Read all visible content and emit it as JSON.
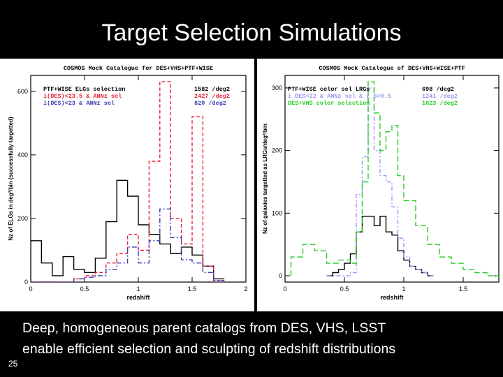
{
  "slide": {
    "title": "Target Selection Simulations",
    "caption_line1": "Deep, homogeneous parent catalogs from DES, VHS, LSST",
    "caption_line2": "enable efficient selection and sculpting of redshift distributions",
    "slide_number": "25"
  },
  "colors": {
    "black": "#000000",
    "red": "#e8203a",
    "blue": "#3a3ab8",
    "green": "#22cc22",
    "lightblue": "#9999ee"
  },
  "chart_data": [
    {
      "type": "line",
      "title": "COSMOS Mock Catalogue for DES+VHS+PTF+WISE",
      "xlabel": "redshift",
      "ylabel": "Nz of ELGs in deg²/bin (successfully targetted)",
      "xlim": [
        0,
        2
      ],
      "ylim": [
        0,
        650
      ],
      "xticks": [
        0,
        0.5,
        1,
        1.5,
        2
      ],
      "xtick_labels": [
        "0",
        "0.5",
        "1",
        "1.5",
        "2"
      ],
      "yticks": [
        0,
        200,
        400,
        600
      ],
      "ytick_labels": [
        "0",
        "200",
        "400",
        "600"
      ],
      "legend_position": "top",
      "series": [
        {
          "name": "PTF+WISE ELGs selection",
          "density": "1582 /deg2",
          "color": "#000000",
          "dash": "",
          "x": [
            0,
            0.1,
            0.2,
            0.3,
            0.4,
            0.5,
            0.6,
            0.7,
            0.8,
            0.9,
            1.0,
            1.1,
            1.2,
            1.3,
            1.4,
            1.5,
            1.6,
            1.7
          ],
          "values": [
            130,
            60,
            20,
            80,
            40,
            30,
            75,
            190,
            320,
            270,
            180,
            150,
            120,
            90,
            110,
            85,
            50,
            10
          ]
        },
        {
          "name": "i(DES)<23.5 & ANNz sel",
          "density": "2427 /deg2",
          "color": "#e8203a",
          "dash": "5 3",
          "x": [
            0,
            0.1,
            0.2,
            0.3,
            0.4,
            0.5,
            0.6,
            0.7,
            0.8,
            0.9,
            1.0,
            1.1,
            1.2,
            1.3,
            1.4,
            1.5,
            1.6,
            1.7
          ],
          "values": [
            0,
            0,
            0,
            0,
            10,
            20,
            30,
            60,
            90,
            150,
            100,
            380,
            630,
            200,
            120,
            520,
            50,
            5
          ]
        },
        {
          "name": "i(DES)<23 & ANNz sel",
          "density": "820 /deg2",
          "color": "#3a3ab8",
          "dash": "7 3 2 3",
          "x": [
            0,
            0.1,
            0.2,
            0.3,
            0.4,
            0.5,
            0.6,
            0.7,
            0.8,
            0.9,
            1.0,
            1.1,
            1.2,
            1.3,
            1.4,
            1.5,
            1.6,
            1.7
          ],
          "values": [
            0,
            0,
            0,
            0,
            10,
            15,
            20,
            40,
            60,
            110,
            60,
            130,
            230,
            140,
            70,
            60,
            30,
            5
          ]
        }
      ]
    },
    {
      "type": "line",
      "title": "COSMOS Mock Catalogue of DES+VHS+WISE+PTF",
      "xlabel": "redshift",
      "ylabel": "Nz of galaxies targetted as LRGs/deg²/bin",
      "xlim": [
        0,
        1.8
      ],
      "ylim": [
        -10,
        320
      ],
      "xticks": [
        0,
        0.5,
        1,
        1.5
      ],
      "xtick_labels": [
        "0",
        "0.5",
        "1",
        "1.5"
      ],
      "yticks": [
        0,
        100,
        200,
        300
      ],
      "ytick_labels": [
        "0",
        "100",
        "200",
        "300"
      ],
      "legend_position": "top",
      "series": [
        {
          "name": "PTF+WISE color sel LRGs",
          "density": "698 /deg2",
          "color": "#000000",
          "dash": "",
          "x": [
            0.35,
            0.4,
            0.45,
            0.5,
            0.55,
            0.6,
            0.65,
            0.7,
            0.75,
            0.8,
            0.85,
            0.9,
            0.95,
            1.0,
            1.05,
            1.1,
            1.15,
            1.2
          ],
          "values": [
            0,
            5,
            10,
            20,
            35,
            70,
            95,
            95,
            80,
            95,
            70,
            65,
            40,
            25,
            15,
            10,
            5,
            0
          ]
        },
        {
          "name": "i_DES<22 & ANNz sel & z_p>0.5",
          "density": "1241 /deg2",
          "color": "#9999ee",
          "dash": "6 3 2 3",
          "x": [
            0.35,
            0.4,
            0.45,
            0.5,
            0.55,
            0.6,
            0.65,
            0.7,
            0.75,
            0.8,
            0.85,
            0.9,
            0.95,
            1.0,
            1.05,
            1.1,
            1.15,
            1.2
          ],
          "values": [
            0,
            0,
            0,
            0,
            5,
            130,
            190,
            300,
            200,
            160,
            150,
            110,
            60,
            30,
            15,
            10,
            5,
            0
          ]
        },
        {
          "name": "DES+VHS color selection",
          "density": "1623 /deg2",
          "color": "#22cc22",
          "dash": "8 4",
          "x": [
            0.05,
            0.15,
            0.25,
            0.35,
            0.45,
            0.55,
            0.6,
            0.65,
            0.7,
            0.75,
            0.8,
            0.85,
            0.9,
            0.95,
            1.0,
            1.1,
            1.2,
            1.3,
            1.4,
            1.5,
            1.6,
            1.7
          ],
          "values": [
            30,
            50,
            40,
            20,
            25,
            20,
            70,
            150,
            310,
            260,
            200,
            230,
            240,
            160,
            120,
            80,
            50,
            30,
            20,
            10,
            5,
            0
          ]
        }
      ]
    }
  ]
}
